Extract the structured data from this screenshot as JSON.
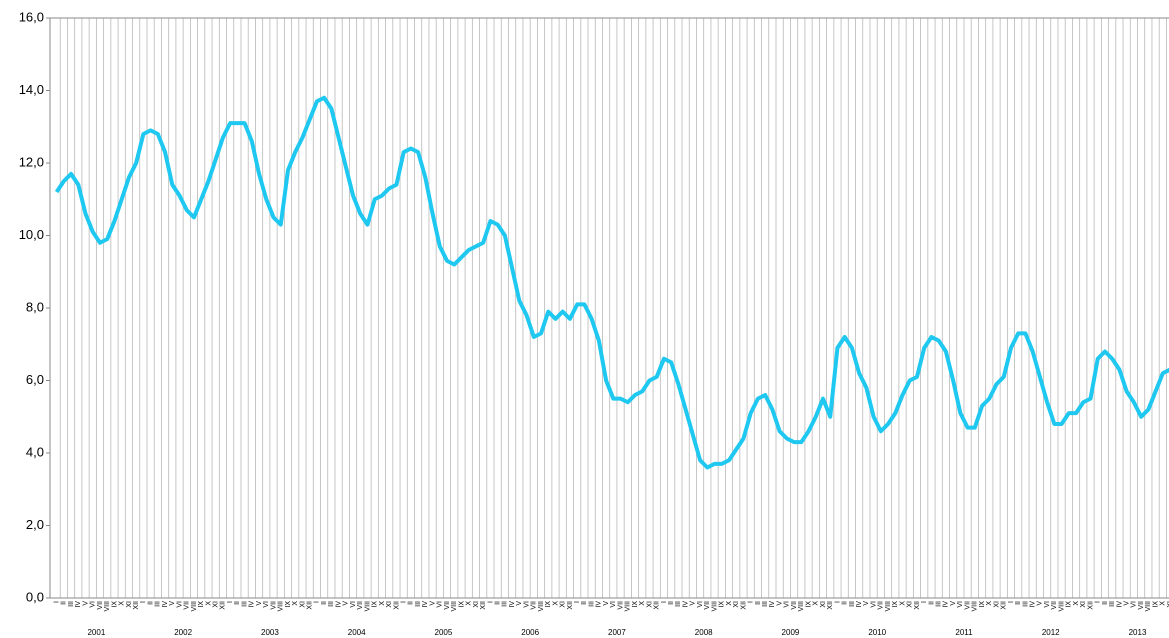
{
  "chart_data": {
    "type": "line",
    "categories": [
      "I",
      "II",
      "III",
      "IV",
      "V",
      "VI",
      "VII",
      "VIII",
      "IX",
      "X",
      "XI",
      "XII",
      "I",
      "II",
      "III",
      "IV",
      "V",
      "VI",
      "VII",
      "VIII",
      "IX",
      "X",
      "XI",
      "XII",
      "I",
      "II",
      "III",
      "IV",
      "V",
      "VI",
      "VII",
      "VIII",
      "IX",
      "X",
      "XI",
      "XII",
      "I",
      "II",
      "III",
      "IV",
      "V",
      "VI",
      "VII",
      "VIII",
      "IX",
      "X",
      "XI",
      "XII",
      "I",
      "II",
      "III",
      "IV",
      "V",
      "VI",
      "VII",
      "VIII",
      "IX",
      "X",
      "XI",
      "XII",
      "I",
      "II",
      "III",
      "IV",
      "V",
      "VI",
      "VII",
      "VIII",
      "IX",
      "X",
      "XI",
      "XII",
      "I",
      "II",
      "III",
      "IV",
      "V",
      "VI",
      "VII",
      "VIII",
      "IX",
      "X",
      "XI",
      "XII",
      "I",
      "II",
      "III",
      "IV",
      "V",
      "VI",
      "VII",
      "VIII",
      "IX",
      "X",
      "XI",
      "XII",
      "I",
      "II",
      "III",
      "IV",
      "V",
      "VI",
      "VII",
      "VIII",
      "IX",
      "X",
      "XI",
      "XII",
      "I",
      "II",
      "III",
      "IV",
      "V",
      "VI",
      "VII",
      "VIII",
      "IX",
      "X",
      "XI",
      "XII",
      "I",
      "II",
      "III",
      "IV",
      "V",
      "VI",
      "VII",
      "VIII",
      "IX",
      "X",
      "XI",
      "XII",
      "I",
      "II",
      "III",
      "IV",
      "V",
      "VI",
      "VII",
      "VIII",
      "IX",
      "X",
      "XI",
      "XII",
      "I",
      "II",
      "III",
      "IV",
      "V",
      "VI",
      "VII",
      "VIII",
      "IX",
      "X",
      "XI"
    ],
    "years": [
      "2001",
      "2002",
      "2003",
      "2004",
      "2005",
      "2006",
      "2007",
      "2008",
      "2009",
      "2010",
      "2011",
      "2012",
      "2013"
    ],
    "values": [
      11.2,
      11.5,
      11.7,
      11.4,
      10.6,
      10.1,
      9.8,
      9.9,
      10.4,
      11.0,
      11.6,
      12.0,
      12.8,
      12.9,
      12.8,
      12.3,
      11.4,
      11.1,
      10.7,
      10.5,
      11.0,
      11.5,
      12.1,
      12.7,
      13.1,
      13.1,
      13.1,
      12.6,
      11.7,
      11.0,
      10.5,
      10.3,
      11.8,
      12.3,
      12.7,
      13.2,
      13.7,
      13.8,
      13.5,
      12.7,
      11.9,
      11.1,
      10.6,
      10.3,
      11.0,
      11.1,
      11.3,
      11.4,
      12.3,
      12.4,
      12.3,
      11.6,
      10.6,
      9.7,
      9.3,
      9.2,
      9.4,
      9.6,
      9.7,
      9.8,
      10.4,
      10.3,
      10.0,
      9.1,
      8.2,
      7.8,
      7.2,
      7.3,
      7.9,
      7.7,
      7.9,
      7.7,
      8.1,
      8.1,
      7.7,
      7.1,
      6.0,
      5.5,
      5.5,
      5.4,
      5.6,
      5.7,
      6.0,
      6.1,
      6.6,
      6.5,
      5.9,
      5.2,
      4.5,
      3.8,
      3.6,
      3.7,
      3.7,
      3.8,
      4.1,
      4.4,
      5.1,
      5.5,
      5.6,
      5.2,
      4.6,
      4.4,
      4.3,
      4.3,
      4.6,
      5.0,
      5.5,
      5.0,
      6.9,
      7.2,
      6.9,
      6.2,
      5.8,
      5.0,
      4.6,
      4.8,
      5.1,
      5.6,
      6.0,
      6.1,
      6.9,
      7.2,
      7.1,
      6.8,
      6.0,
      5.1,
      4.7,
      4.7,
      5.3,
      5.5,
      5.9,
      6.1,
      6.9,
      7.3,
      7.3,
      6.8,
      6.1,
      5.4,
      4.8,
      4.8,
      5.1,
      5.1,
      5.4,
      5.5,
      6.6,
      6.8,
      6.6,
      6.3,
      5.7,
      5.4,
      5.0,
      5.2,
      5.7,
      6.2,
      6.3
    ],
    "color": "#1ec8f0",
    "ylim": [
      0,
      16
    ],
    "yticks": [
      {
        "value": 0,
        "label": "0,0"
      },
      {
        "value": 2,
        "label": "2,0"
      },
      {
        "value": 4,
        "label": "4,0"
      },
      {
        "value": 6,
        "label": "6,0"
      },
      {
        "value": 8,
        "label": "8,0"
      },
      {
        "value": 10,
        "label": "10,0"
      },
      {
        "value": 12,
        "label": "12,0"
      },
      {
        "value": 14,
        "label": "14,0"
      },
      {
        "value": 16,
        "label": "16,0"
      }
    ],
    "grid": true
  }
}
